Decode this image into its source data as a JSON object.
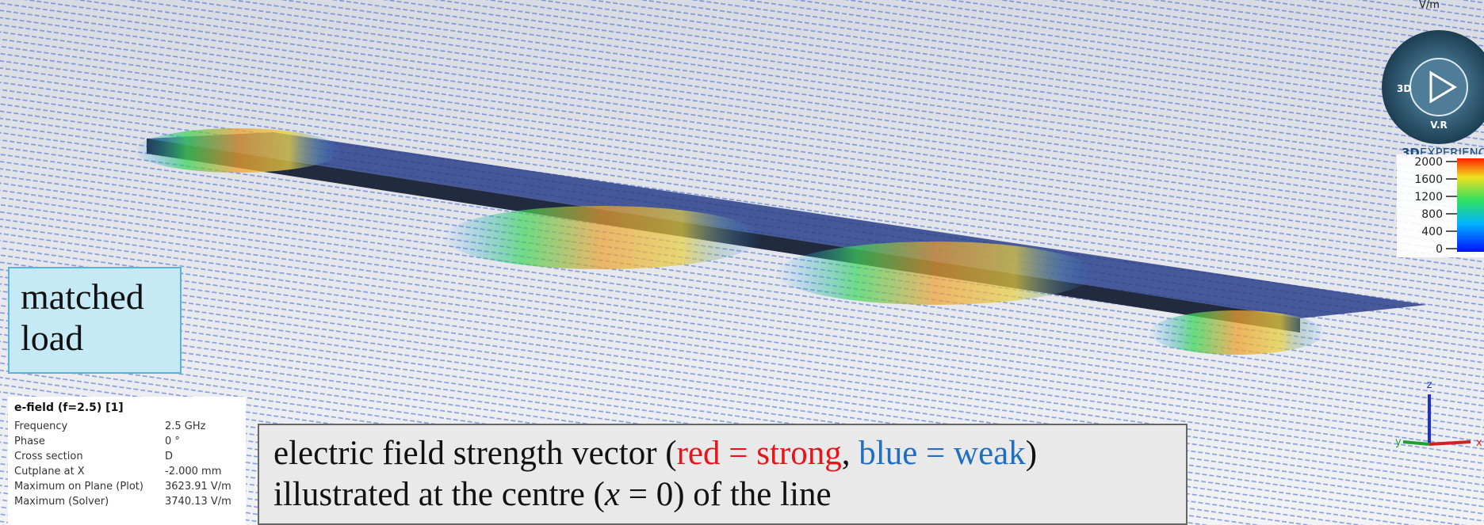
{
  "viewport": {
    "matched_load": "matched load",
    "info_panel": {
      "title": "e-field (f=2.5) [1]",
      "rows": [
        [
          "Frequency",
          "2.5 GHz"
        ],
        [
          "Phase",
          "0 °"
        ],
        [
          "Cross section",
          "D"
        ],
        [
          "Cutplane at X",
          "-2.000 mm"
        ],
        [
          "Maximum on Plane (Plot)",
          "3623.91 V/m"
        ],
        [
          "Maximum (Solver)",
          "3740.13 V/m"
        ]
      ]
    },
    "caption": {
      "line1": [
        "electric field strength vector (",
        "red = strong",
        ", ",
        "blue = weak",
        ")"
      ],
      "line2": [
        "illustrated at the centre (",
        "x",
        " = 0) of the line"
      ]
    },
    "color_scale": {
      "unit": "V/m",
      "ticks": [
        2000,
        1600,
        1200,
        800,
        400,
        0
      ]
    },
    "compass": {
      "left": "3D",
      "bottom": "V.R",
      "brand_bold": "3D",
      "brand": "EXPERIENC"
    },
    "axes": {
      "z": "z",
      "y": "y",
      "x": "x"
    }
  }
}
